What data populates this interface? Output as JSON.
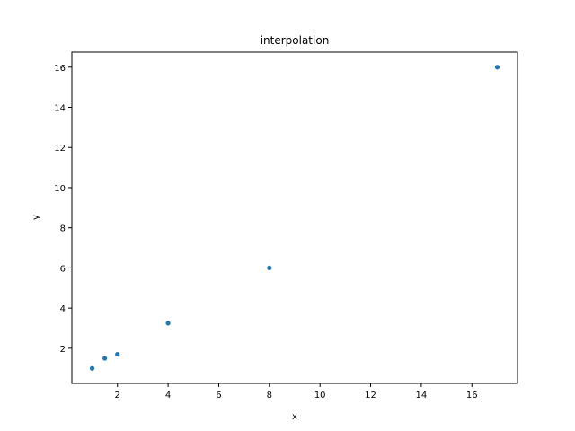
{
  "chart_data": {
    "type": "scatter",
    "title": "interpolation",
    "xlabel": "x",
    "ylabel": "y",
    "xlim": [
      0.2,
      17.8
    ],
    "ylim": [
      0.25,
      16.75
    ],
    "xticks": [
      2,
      4,
      6,
      8,
      10,
      12,
      14,
      16
    ],
    "yticks": [
      2,
      4,
      6,
      8,
      10,
      12,
      14,
      16
    ],
    "grid": false,
    "series": [
      {
        "color": "#1f77b4",
        "points": [
          {
            "x": 1,
            "y": 1
          },
          {
            "x": 1.5,
            "y": 1.5
          },
          {
            "x": 2,
            "y": 1.7
          },
          {
            "x": 4,
            "y": 3.25
          },
          {
            "x": 8,
            "y": 6
          },
          {
            "x": 17,
            "y": 16
          }
        ]
      }
    ]
  }
}
